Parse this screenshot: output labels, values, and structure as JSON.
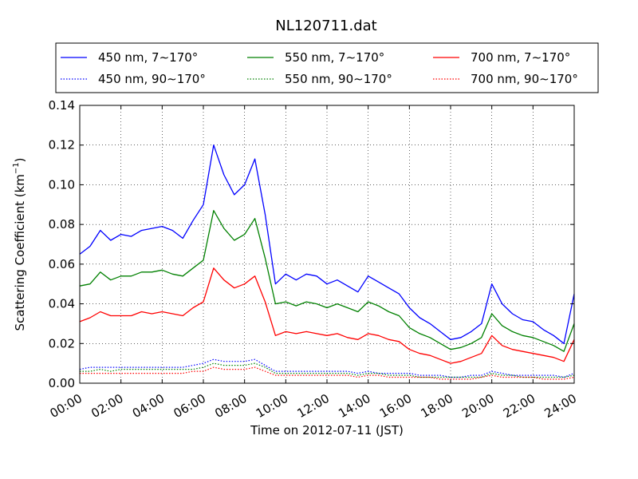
{
  "chart_data": {
    "type": "line",
    "title": "NL120711.dat",
    "xlabel": "Time on 2012-07-11 (JST)",
    "ylabel_main": "Scattering Coefficient (km",
    "ylabel_sup": "−1",
    "ylabel_close": ")",
    "xlim": [
      "00:00",
      "24:00"
    ],
    "ylim": [
      0.0,
      0.14
    ],
    "grid": true,
    "legend_placement": "top, above plot, 3 columns",
    "x_ticks": [
      "00:00",
      "02:00",
      "04:00",
      "06:00",
      "08:00",
      "10:00",
      "12:00",
      "14:00",
      "16:00",
      "18:00",
      "20:00",
      "22:00",
      "24:00"
    ],
    "y_ticks": [
      "0.00",
      "0.02",
      "0.04",
      "0.06",
      "0.08",
      "0.10",
      "0.12",
      "0.14"
    ],
    "x_hours": [
      0,
      0.5,
      1,
      1.5,
      2,
      2.5,
      3,
      3.5,
      4,
      4.5,
      5,
      5.5,
      6,
      6.5,
      7,
      7.5,
      8,
      8.5,
      9,
      9.5,
      10,
      10.5,
      11,
      11.5,
      12,
      12.5,
      13,
      13.5,
      14,
      14.5,
      15,
      15.5,
      16,
      16.5,
      17,
      17.5,
      18,
      18.5,
      19,
      19.5,
      20,
      20.5,
      21,
      21.5,
      22,
      22.5,
      23,
      23.5,
      24
    ],
    "series": [
      {
        "name": "450 nm, 7∼170°",
        "color": "#0000ff",
        "style": "solid",
        "values": [
          0.065,
          0.069,
          0.077,
          0.072,
          0.075,
          0.074,
          0.077,
          0.078,
          0.079,
          0.077,
          0.073,
          0.082,
          0.09,
          0.12,
          0.105,
          0.095,
          0.1,
          0.113,
          0.085,
          0.05,
          0.055,
          0.052,
          0.055,
          0.054,
          0.05,
          0.052,
          0.049,
          0.046,
          0.054,
          0.051,
          0.048,
          0.045,
          0.038,
          0.033,
          0.03,
          0.026,
          0.022,
          0.023,
          0.026,
          0.03,
          0.05,
          0.04,
          0.035,
          0.032,
          0.031,
          0.027,
          0.024,
          0.02,
          0.045
        ]
      },
      {
        "name": "550 nm, 7∼170°",
        "color": "#008000",
        "style": "solid",
        "values": [
          0.049,
          0.05,
          0.056,
          0.052,
          0.054,
          0.054,
          0.056,
          0.056,
          0.057,
          0.055,
          0.054,
          0.058,
          0.062,
          0.087,
          0.078,
          0.072,
          0.075,
          0.083,
          0.063,
          0.04,
          0.041,
          0.039,
          0.041,
          0.04,
          0.038,
          0.04,
          0.038,
          0.036,
          0.041,
          0.039,
          0.036,
          0.034,
          0.028,
          0.025,
          0.023,
          0.02,
          0.017,
          0.018,
          0.02,
          0.023,
          0.035,
          0.029,
          0.026,
          0.024,
          0.023,
          0.021,
          0.019,
          0.016,
          0.03
        ]
      },
      {
        "name": "700 nm, 7∼170°",
        "color": "#ff0000",
        "style": "solid",
        "values": [
          0.031,
          0.033,
          0.036,
          0.034,
          0.034,
          0.034,
          0.036,
          0.035,
          0.036,
          0.035,
          0.034,
          0.038,
          0.041,
          0.058,
          0.052,
          0.048,
          0.05,
          0.054,
          0.041,
          0.024,
          0.026,
          0.025,
          0.026,
          0.025,
          0.024,
          0.025,
          0.023,
          0.022,
          0.025,
          0.024,
          0.022,
          0.021,
          0.017,
          0.015,
          0.014,
          0.012,
          0.01,
          0.011,
          0.013,
          0.015,
          0.024,
          0.019,
          0.017,
          0.016,
          0.015,
          0.014,
          0.013,
          0.011,
          0.022
        ]
      },
      {
        "name": "450 nm, 90∼170°",
        "color": "#0000ff",
        "style": "dotted",
        "values": [
          0.007,
          0.008,
          0.008,
          0.008,
          0.008,
          0.008,
          0.008,
          0.008,
          0.008,
          0.008,
          0.008,
          0.009,
          0.01,
          0.012,
          0.011,
          0.011,
          0.011,
          0.012,
          0.009,
          0.006,
          0.006,
          0.006,
          0.006,
          0.006,
          0.006,
          0.006,
          0.006,
          0.005,
          0.006,
          0.005,
          0.005,
          0.005,
          0.005,
          0.004,
          0.004,
          0.004,
          0.003,
          0.003,
          0.004,
          0.004,
          0.006,
          0.005,
          0.004,
          0.004,
          0.004,
          0.004,
          0.004,
          0.003,
          0.005
        ]
      },
      {
        "name": "550 nm, 90∼170°",
        "color": "#008000",
        "style": "dotted",
        "values": [
          0.006,
          0.006,
          0.007,
          0.006,
          0.007,
          0.007,
          0.007,
          0.007,
          0.007,
          0.007,
          0.007,
          0.007,
          0.008,
          0.01,
          0.009,
          0.009,
          0.009,
          0.01,
          0.008,
          0.005,
          0.005,
          0.005,
          0.005,
          0.005,
          0.005,
          0.005,
          0.005,
          0.004,
          0.005,
          0.005,
          0.004,
          0.004,
          0.004,
          0.003,
          0.003,
          0.003,
          0.003,
          0.003,
          0.003,
          0.003,
          0.005,
          0.004,
          0.004,
          0.003,
          0.003,
          0.003,
          0.003,
          0.003,
          0.004
        ]
      },
      {
        "name": "700 nm, 90∼170°",
        "color": "#ff0000",
        "style": "dotted",
        "values": [
          0.005,
          0.005,
          0.005,
          0.005,
          0.005,
          0.005,
          0.005,
          0.005,
          0.005,
          0.005,
          0.005,
          0.006,
          0.006,
          0.008,
          0.007,
          0.007,
          0.007,
          0.008,
          0.006,
          0.004,
          0.004,
          0.004,
          0.004,
          0.004,
          0.004,
          0.004,
          0.004,
          0.003,
          0.004,
          0.004,
          0.003,
          0.003,
          0.003,
          0.003,
          0.003,
          0.002,
          0.002,
          0.002,
          0.002,
          0.003,
          0.004,
          0.003,
          0.003,
          0.003,
          0.003,
          0.002,
          0.002,
          0.002,
          0.003
        ]
      }
    ]
  },
  "legend": {
    "entries": [
      {
        "label": "450 nm, 7∼170°",
        "color": "#0000ff",
        "style": "solid"
      },
      {
        "label": "550 nm, 7∼170°",
        "color": "#008000",
        "style": "solid"
      },
      {
        "label": "700 nm, 7∼170°",
        "color": "#ff0000",
        "style": "solid"
      },
      {
        "label": "450 nm, 90∼170°",
        "color": "#0000ff",
        "style": "dotted"
      },
      {
        "label": "550 nm, 90∼170°",
        "color": "#008000",
        "style": "dotted"
      },
      {
        "label": "700 nm, 90∼170°",
        "color": "#ff0000",
        "style": "dotted"
      }
    ]
  }
}
